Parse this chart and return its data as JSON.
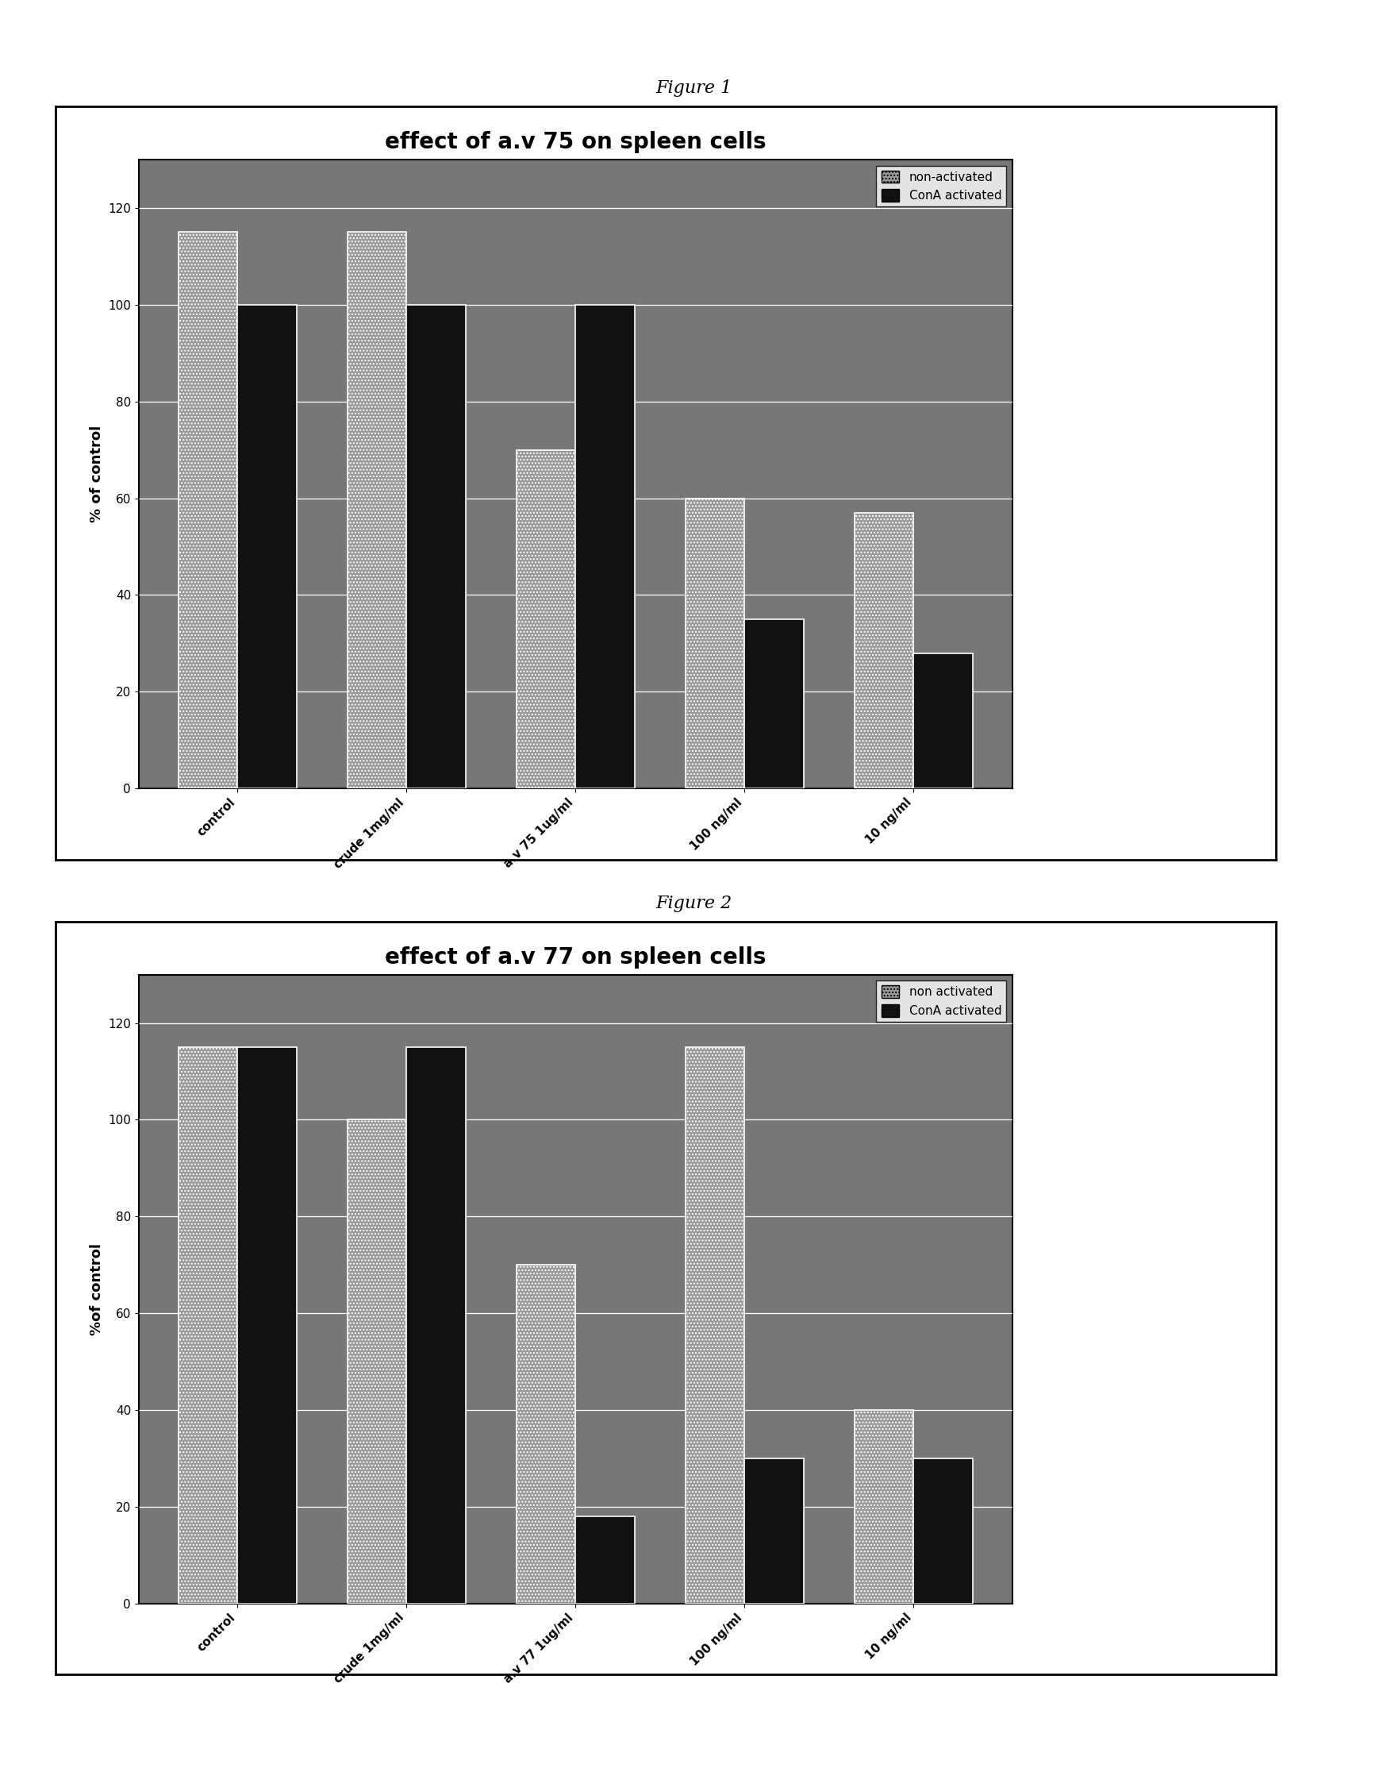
{
  "fig1": {
    "title": "effect of a.v 75 on spleen cells",
    "ylabel": "% of control",
    "legend1": "non-activated",
    "legend2": "ConA activated",
    "categories": [
      "control",
      "crude 1mg/ml",
      "a.v 75 1ug/ml",
      "100 ng/ml",
      "10 ng/ml"
    ],
    "non_activated": [
      115,
      115,
      70,
      60,
      57
    ],
    "con_activated": [
      100,
      100,
      100,
      35,
      28
    ],
    "ylim": [
      0,
      130
    ],
    "yticks": [
      0,
      20,
      40,
      60,
      80,
      100,
      120
    ],
    "figure_label": "Figure 1"
  },
  "fig2": {
    "title": "effect of a.v 77 on spleen cells",
    "ylabel": "%of control",
    "legend1": "non activated",
    "legend2": "ConA activated",
    "categories": [
      "control",
      "crude 1mg/ml",
      "a.v 77 1ug/ml",
      "100 ng/ml",
      "10 ng/ml"
    ],
    "non_activated": [
      115,
      100,
      70,
      115,
      40
    ],
    "con_activated": [
      115,
      115,
      18,
      30,
      30
    ],
    "ylim": [
      0,
      130
    ],
    "yticks": [
      0,
      20,
      40,
      60,
      80,
      100,
      120
    ],
    "figure_label": "Figure 2"
  },
  "bar_width": 0.35,
  "background_color": "#ffffff",
  "chart_bg_color": "#777777",
  "fig_label_fontsize": 16,
  "title_fontsize": 20,
  "ylabel_fontsize": 13,
  "tick_fontsize": 11,
  "xtick_fontsize": 11,
  "legend_fontsize": 11
}
